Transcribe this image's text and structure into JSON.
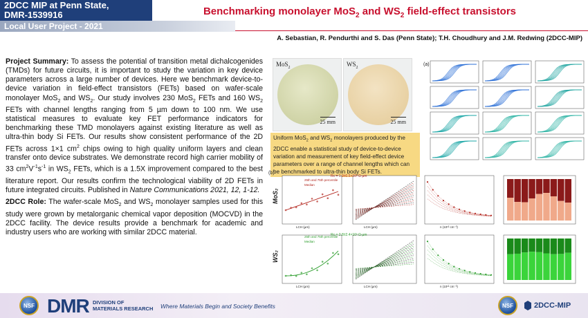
{
  "header": {
    "org_line1": "2DCC MIP at Penn State,",
    "org_line2": "DMR-1539916",
    "project_type": "Local User Project - 2021",
    "title_part1": "Benchmarking monolayer MoS",
    "title_sub1": "2",
    "title_part2": " and WS",
    "title_sub2": "2",
    "title_part3": " field-effect transistors",
    "authors": "A. Sebastian, R. Pendurthi and S. Das (Penn State); T.H. Choudhury and J.M. Redwing (2DCC-MIP)"
  },
  "summary": {
    "label": "Project Summary:",
    "t1": " To assess the potential of transition metal dichalcogenides (TMDs) for future circuits, it is important to study the variation in key device parameters across a large number of devices. Here we benchmark device-to-device variation in field-effect transistors (FETs) based on wafer-scale monolayer MoS",
    "s1": "2",
    "t2": " and WS",
    "s2": "2",
    "t3": ". Our study involves 230 MoS",
    "s3": "2",
    "t4": " FETs and 160 WS",
    "s4": "2",
    "t5": " FETs with channel lengths ranging from 5 µm down to 100 nm. We use statistical measures to evaluate key FET performance indicators for benchmarking these TMD monolayers against existing literature as well as ultra-thin body Si FETs. Our results show consistent performance of the 2D FETs across 1×1 cm",
    "sup1": "2",
    "t6": " chips owing to high quality uniform layers and clean transfer onto device substrates. We demonstrate record high carrier mobility of 33 cm",
    "sup2": "2",
    "t7": "V",
    "sup3": "-1",
    "t8": "s",
    "sup4": "-1",
    "t9": " in WS",
    "s5": "2",
    "t10": " FETs, which is a 1.5X improvement compared to the best literature report. Our results confirm the technological viability of 2D FETs in future integrated circuits. Published in ",
    "journal": "Nature Communications 2021, 12, 1-12."
  },
  "role": {
    "label": "2DCC Role:",
    "t1": " The wafer-scale MoS",
    "s1": "2",
    "t2": " and WS",
    "s2": "2",
    "t3": " monolayer samples used for this study were grown by metalorganic chemical vapor deposition (MOCVD) in the 2DCC facility. The device results provide a benchmark for academic and industry users who are working with similar 2DCC material."
  },
  "figure": {
    "wafer1_label": "MoS",
    "wafer1_sub": "2",
    "wafer2_label": "WS",
    "wafer2_sub": "2",
    "scale_bar": "25 mm",
    "caption_t1": "Uniform MoS",
    "caption_s1": "2",
    "caption_t2": " and WS",
    "caption_s2": "2",
    "caption_t3": " monolayers produced by the 2DCC enable a statistical study of device-to-device variation and measurement of key field-effect device parameters over a range of channel lengths which can be benchmarked to ultra-thin body Si FETs.",
    "panel_a": "(a)",
    "panel_b": "(b)",
    "row_mos2": "MoS₂",
    "row_ws2": "WS₂",
    "legend_percentile": "25th and 75th percentile",
    "legend_median": "Median",
    "annot_mos2": "Rc = 1.9±0.5×10³ Ω·µm",
    "annot_ws2": "Rc = 2.8±2.4×10³ Ω·µm",
    "xlabel_lch": "LCH (µm)",
    "xlabel_n": "n (10¹² cm⁻²)",
    "colors": {
      "mos2_curves": "#2a6fd6",
      "ws2_curves": "#1aa6a6",
      "red": "#b3261e",
      "green": "#2e9e2e"
    }
  },
  "footer": {
    "nsf": "NSF",
    "dmr": "DMR",
    "dmr_sub1": "DIVISION OF",
    "dmr_sub2": "MATERIALS RESEARCH",
    "tagline": "Where Materials Begin and Society Benefits",
    "mip": "2DCC-MIP"
  }
}
